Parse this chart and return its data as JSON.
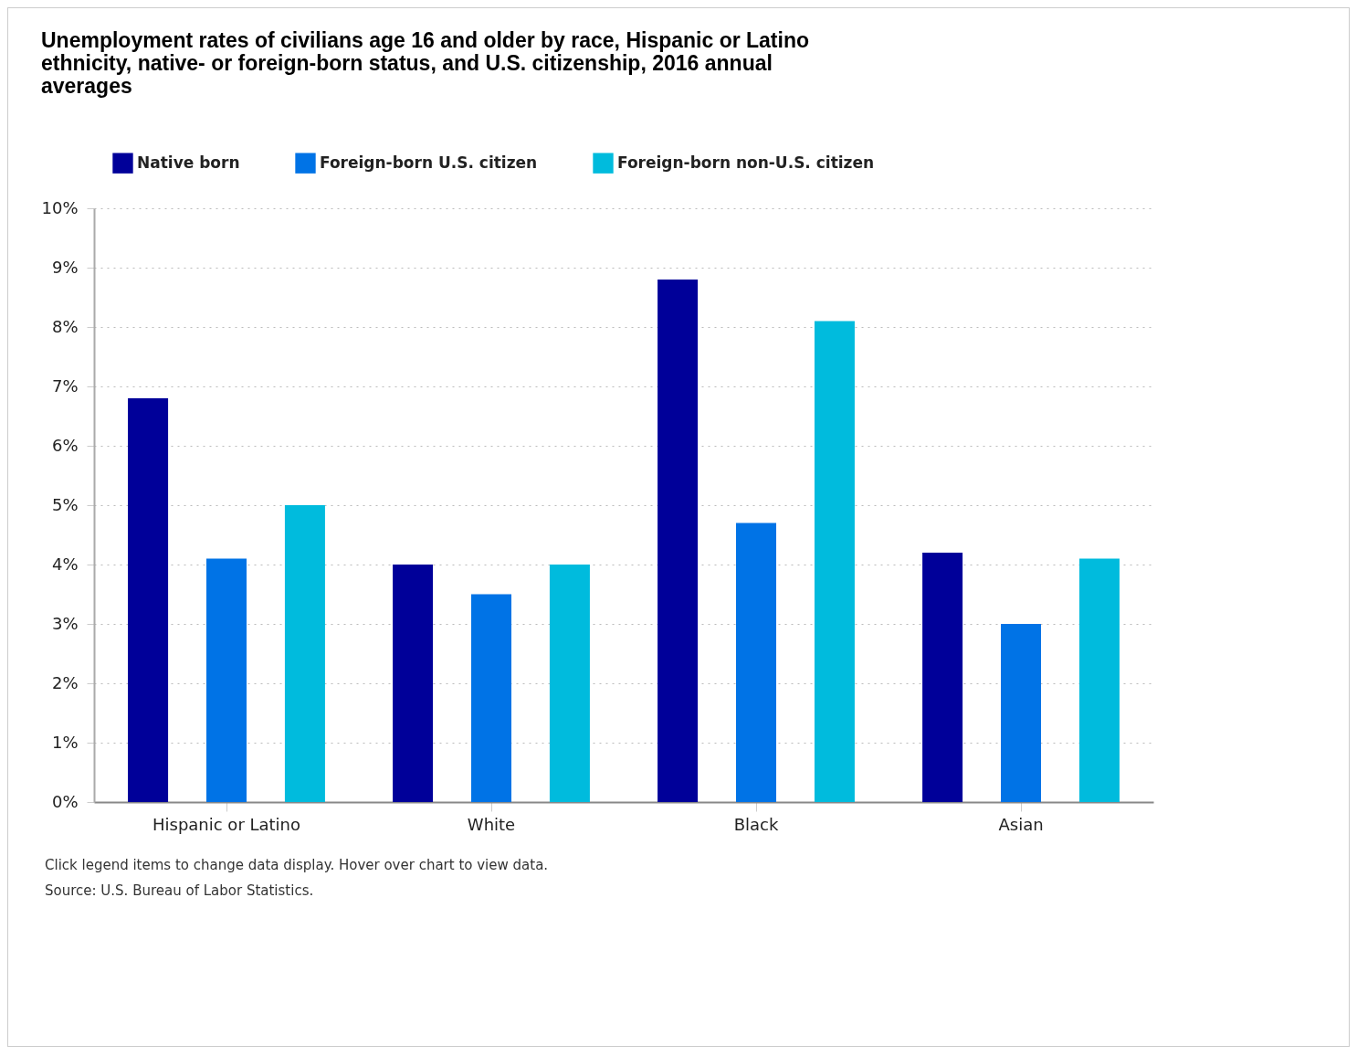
{
  "chart_data": {
    "type": "bar",
    "title": "Unemployment rates of civilians age 16 and older by race, Hispanic or Latino ethnicity, native- or foreign-born status, and U.S. citizenship, 2016 annual averages",
    "categories": [
      "Hispanic or Latino",
      "White",
      "Black",
      "Asian"
    ],
    "series": [
      {
        "name": "Native born",
        "color": "#000099",
        "values": [
          6.8,
          4.0,
          8.8,
          4.2
        ]
      },
      {
        "name": "Foreign-born U.S. citizen",
        "color": "#0073e6",
        "values": [
          4.1,
          3.5,
          4.7,
          3.0
        ]
      },
      {
        "name": "Foreign-born non-U.S. citizen",
        "color": "#00bbdd",
        "values": [
          5.0,
          4.0,
          8.1,
          4.1
        ]
      }
    ],
    "ylim": [
      0,
      10
    ],
    "yticks": [
      {
        "value": 0,
        "label": "0%"
      },
      {
        "value": 1,
        "label": "1%"
      },
      {
        "value": 2,
        "label": "2%"
      },
      {
        "value": 3,
        "label": "3%"
      },
      {
        "value": 4,
        "label": "4%"
      },
      {
        "value": 5,
        "label": "5%"
      },
      {
        "value": 6,
        "label": "6%"
      },
      {
        "value": 7,
        "label": "7%"
      },
      {
        "value": 8,
        "label": "8%"
      },
      {
        "value": 9,
        "label": "9%"
      },
      {
        "value": 10,
        "label": "10%"
      }
    ],
    "grid": "y",
    "legend": "top",
    "annotations": [
      "Click legend items to change data display. Hover over chart to view data.",
      "Source: U.S. Bureau of Labor Statistics."
    ]
  }
}
